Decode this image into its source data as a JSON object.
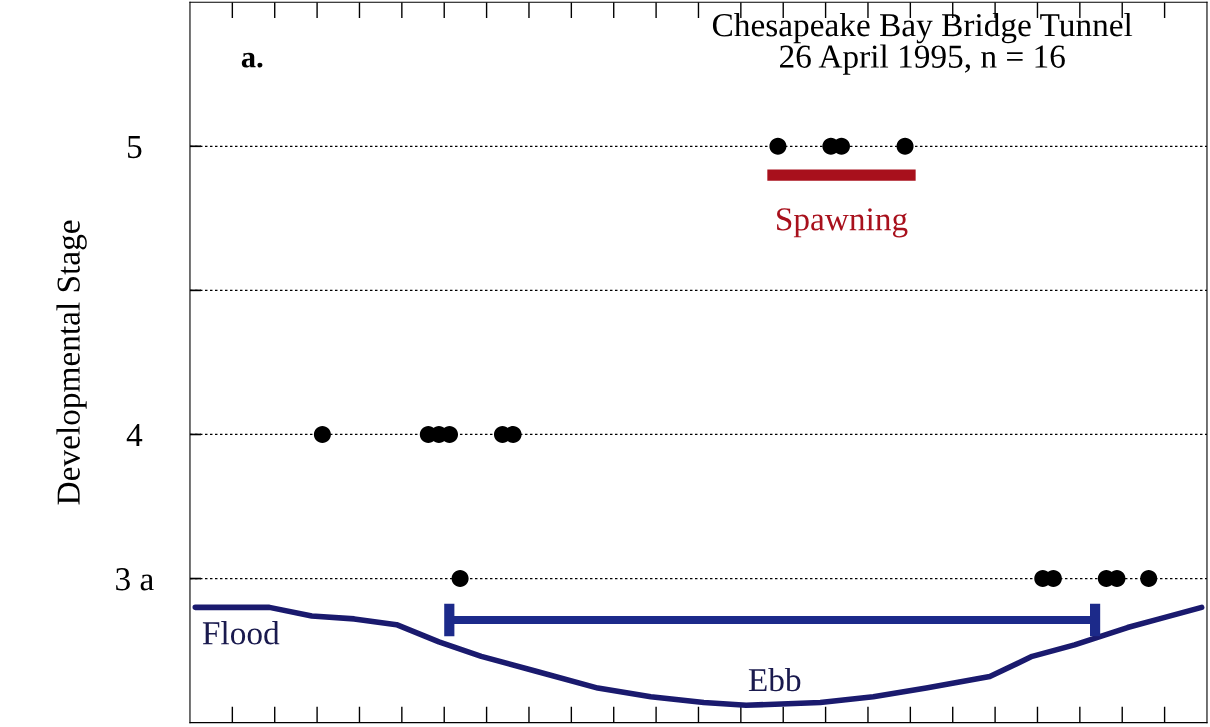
{
  "chart_data": {
    "type": "scatter",
    "title": "Chesapeake Bay Bridge Tunnel\n26 April 1995, n = 16",
    "ylabel": "Developmental Stage",
    "categories": [
      null,
      null,
      null,
      null,
      null,
      null,
      null,
      null,
      null,
      null,
      null,
      null,
      null,
      null,
      null,
      null,
      null,
      null,
      null,
      null,
      null,
      null,
      null,
      null,
      null,
      null,
      null,
      null,
      null,
      null,
      null,
      null,
      null,
      null,
      null,
      null,
      null,
      null,
      null,
      null,
      null,
      null,
      null,
      null,
      null,
      null,
      null,
      null,
      null,
      null,
      null,
      null,
      null,
      null,
      null,
      null,
      null,
      null,
      null,
      null,
      null,
      null,
      null,
      null,
      null,
      null,
      null,
      null,
      null,
      null,
      null,
      null,
      null,
      null,
      null,
      null,
      null,
      null,
      null,
      null,
      null,
      null,
      null,
      null,
      null,
      null,
      null,
      null,
      null,
      null,
      null,
      null,
      null,
      null,
      null,
      null
    ],
    "series": [
      {
        "color": "#000000",
        "values": [
          null,
          null,
          null,
          null,
          null,
          null,
          null,
          null,
          null,
          null,
          null,
          null,
          4,
          null,
          null,
          null,
          null,
          null,
          null,
          null,
          null,
          null,
          4,
          4,
          4,
          3.5,
          null,
          null,
          null,
          4,
          4,
          null,
          null,
          null,
          null,
          null,
          null,
          null,
          null,
          null,
          null,
          null,
          null,
          null,
          null,
          null,
          null,
          null,
          null,
          null,
          null,
          null,
          null,
          null,
          null,
          5,
          null,
          null,
          null,
          null,
          5,
          5,
          null,
          null,
          null,
          null,
          null,
          5,
          null,
          null,
          null,
          null,
          null,
          null,
          null,
          null,
          null,
          null,
          null,
          null,
          3.5,
          3.5,
          null,
          null,
          null,
          null,
          3.5,
          3.5,
          null,
          null,
          3.5,
          null,
          null,
          null,
          null,
          null
        ]
      },
      {
        "type": "line",
        "marker": "none",
        "name": "Spawning",
        "color": "#a8101c",
        "values": [
          null,
          null,
          null,
          null,
          null,
          null,
          null,
          null,
          null,
          null,
          null,
          null,
          null,
          null,
          null,
          null,
          null,
          null,
          null,
          null,
          null,
          null,
          null,
          null,
          null,
          null,
          null,
          null,
          null,
          null,
          null,
          null,
          null,
          null,
          null,
          null,
          null,
          null,
          null,
          null,
          null,
          null,
          null,
          null,
          null,
          null,
          null,
          null,
          null,
          null,
          null,
          null,
          null,
          null,
          4.9,
          null,
          null,
          null,
          null,
          null,
          null,
          null,
          null,
          null,
          null,
          null,
          null,
          null,
          4.9,
          null,
          null,
          null,
          null,
          null,
          null,
          null,
          null,
          null,
          null,
          null,
          null,
          null,
          null,
          null,
          null,
          null,
          null,
          null,
          null,
          null,
          null,
          null,
          null,
          null,
          null,
          null
        ]
      },
      {
        "type": "line",
        "marker": "none",
        "color": "#1a1a6e",
        "values": [
          3.4,
          null,
          null,
          null,
          null,
          null,
          null,
          3.4,
          null,
          null,
          null,
          3.37,
          null,
          null,
          null,
          3.36,
          null,
          null,
          null,
          3.34,
          null,
          null,
          null,
          3.28,
          null,
          null,
          null,
          3.23,
          null,
          null,
          null,
          null,
          3.18,
          null,
          null,
          null,
          null,
          null,
          3.12,
          null,
          null,
          null,
          null,
          3.09,
          null,
          null,
          null,
          null,
          3.07,
          null,
          null,
          null,
          3.06,
          null,
          null,
          null,
          null,
          null,
          null,
          3.07,
          null,
          null,
          null,
          null,
          3.09,
          null,
          null,
          null,
          null,
          3.12,
          null,
          null,
          null,
          null,
          null,
          3.16,
          null,
          null,
          null,
          3.23,
          null,
          null,
          null,
          3.27,
          null,
          null,
          null,
          null,
          3.33,
          null,
          null,
          3.36,
          null,
          null,
          null,
          3.4
        ]
      }
    ],
    "ylim": [
      3,
      5.5
    ],
    "yticks": [
      {
        "value": 3.5,
        "label": "3 a"
      },
      4,
      {
        "value": 4.5,
        "label": null
      },
      5
    ],
    "grid": "y",
    "marker": "circle",
    "annotations": [
      "a.",
      "Flood",
      "Ebb"
    ]
  }
}
